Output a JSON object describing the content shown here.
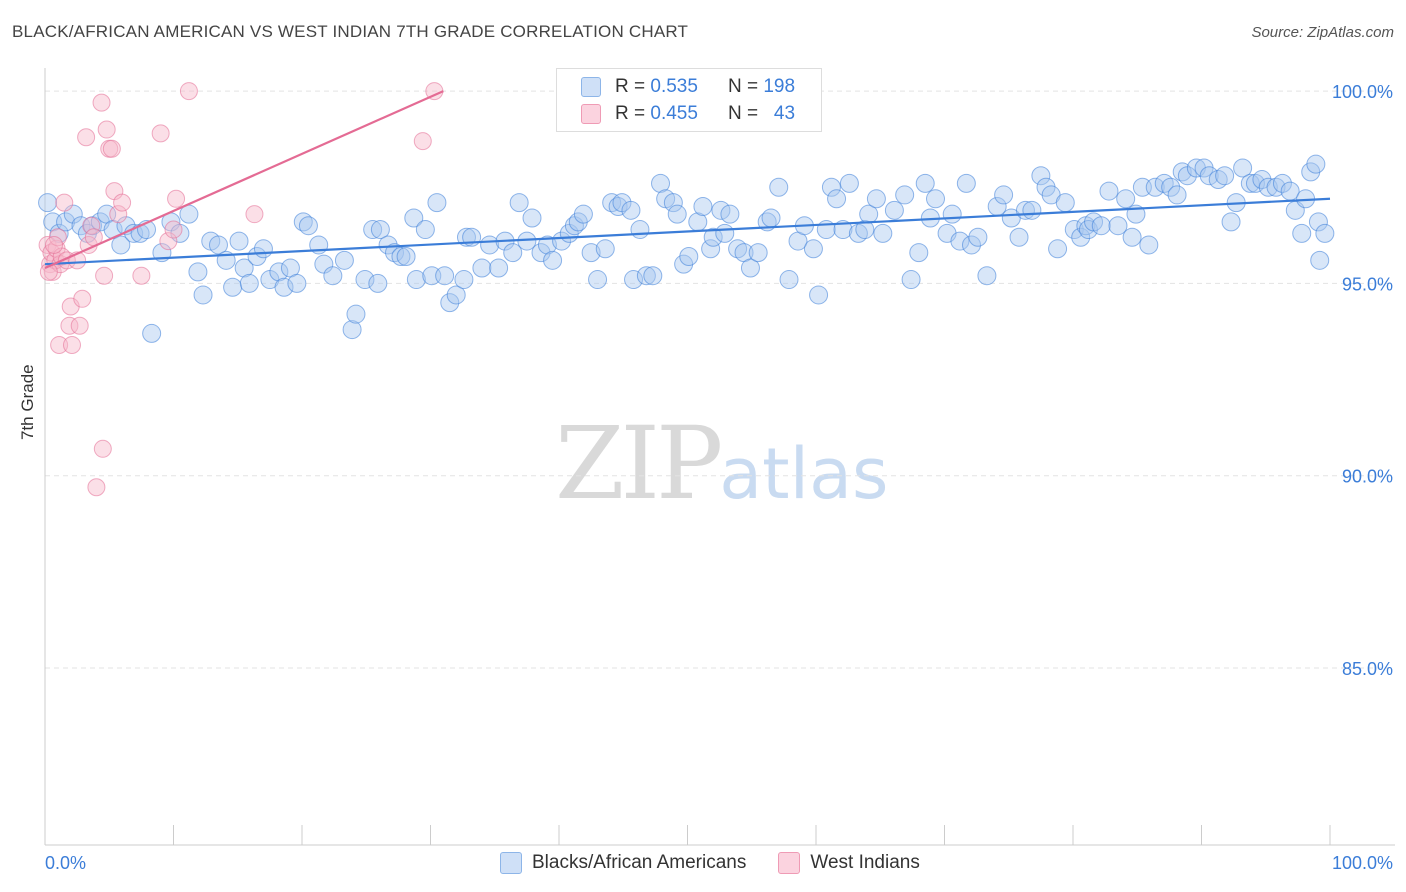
{
  "title": "BLACK/AFRICAN AMERICAN VS WEST INDIAN 7TH GRADE CORRELATION CHART",
  "source": "Source: ZipAtlas.com",
  "watermark": {
    "zip": "ZIP",
    "atlas": "atlas"
  },
  "legend": {
    "rows": [
      {
        "r_label": "R =",
        "r_value": "0.535",
        "n_label": "N =",
        "n_value": "198",
        "color": "#a8c8f0"
      },
      {
        "r_label": "R =",
        "r_value": "0.455",
        "n_label": "N =",
        "n_value": "43",
        "color": "#f6b7c9"
      }
    ]
  },
  "bottom_legend": {
    "series1": "Blacks/African Americans",
    "series2": "West Indians"
  },
  "chart_data": {
    "type": "scatter",
    "ylabel": "7th Grade",
    "xlabel": "",
    "x_tick_labels": [
      "0.0%",
      "100.0%"
    ],
    "y_tick_labels": [
      "100.0%",
      "95.0%",
      "90.0%",
      "85.0%"
    ],
    "y_ticks": [
      100,
      95,
      90,
      85
    ],
    "xlim": [
      0,
      100
    ],
    "ylim": [
      80.4,
      100.6
    ],
    "series": [
      {
        "name": "Blacks/African Americans",
        "color": "#3b7dd8",
        "fill": "#a8c8f0",
        "trend": {
          "x": [
            0,
            100
          ],
          "y": [
            95.5,
            97.2
          ]
        },
        "points": [
          [
            0.2,
            97.1
          ],
          [
            0.6,
            96.6
          ],
          [
            1.1,
            96.3
          ],
          [
            1.6,
            96.6
          ],
          [
            2.2,
            96.8
          ],
          [
            2.8,
            96.5
          ],
          [
            3.3,
            96.3
          ],
          [
            3.7,
            96.5
          ],
          [
            4.3,
            96.6
          ],
          [
            4.8,
            96.8
          ],
          [
            5.3,
            96.4
          ],
          [
            5.9,
            96.0
          ],
          [
            6.3,
            96.5
          ],
          [
            6.9,
            96.3
          ],
          [
            7.4,
            96.3
          ],
          [
            7.9,
            96.4
          ],
          [
            8.3,
            93.7
          ],
          [
            9.1,
            95.8
          ],
          [
            9.8,
            96.6
          ],
          [
            10.5,
            96.3
          ],
          [
            11.2,
            96.8
          ],
          [
            11.9,
            95.3
          ],
          [
            12.3,
            94.7
          ],
          [
            12.9,
            96.1
          ],
          [
            13.5,
            96.0
          ],
          [
            14.1,
            95.6
          ],
          [
            14.6,
            94.9
          ],
          [
            15.1,
            96.1
          ],
          [
            15.5,
            95.4
          ],
          [
            15.9,
            95.0
          ],
          [
            16.5,
            95.7
          ],
          [
            17.0,
            95.9
          ],
          [
            17.5,
            95.1
          ],
          [
            18.2,
            95.3
          ],
          [
            18.6,
            94.9
          ],
          [
            19.1,
            95.4
          ],
          [
            19.6,
            95.0
          ],
          [
            20.1,
            96.6
          ],
          [
            20.5,
            96.5
          ],
          [
            21.3,
            96.0
          ],
          [
            21.7,
            95.5
          ],
          [
            22.4,
            95.2
          ],
          [
            23.3,
            95.6
          ],
          [
            23.9,
            93.8
          ],
          [
            24.2,
            94.2
          ],
          [
            24.9,
            95.1
          ],
          [
            25.5,
            96.4
          ],
          [
            25.9,
            95.0
          ],
          [
            26.1,
            96.4
          ],
          [
            26.7,
            96.0
          ],
          [
            27.2,
            95.8
          ],
          [
            27.7,
            95.7
          ],
          [
            28.1,
            95.7
          ],
          [
            28.7,
            96.7
          ],
          [
            28.9,
            95.1
          ],
          [
            29.6,
            96.4
          ],
          [
            30.1,
            95.2
          ],
          [
            30.5,
            97.1
          ],
          [
            31.1,
            95.2
          ],
          [
            31.5,
            94.5
          ],
          [
            32.0,
            94.7
          ],
          [
            32.6,
            95.1
          ],
          [
            32.8,
            96.2
          ],
          [
            33.2,
            96.2
          ],
          [
            34.0,
            95.4
          ],
          [
            34.6,
            96.0
          ],
          [
            35.3,
            95.4
          ],
          [
            35.8,
            96.1
          ],
          [
            36.4,
            95.8
          ],
          [
            36.9,
            97.1
          ],
          [
            37.5,
            96.1
          ],
          [
            37.9,
            96.7
          ],
          [
            38.6,
            95.8
          ],
          [
            39.1,
            96.0
          ],
          [
            39.5,
            95.6
          ],
          [
            40.2,
            96.1
          ],
          [
            40.8,
            96.3
          ],
          [
            41.2,
            96.5
          ],
          [
            41.5,
            96.6
          ],
          [
            41.9,
            96.8
          ],
          [
            42.5,
            95.8
          ],
          [
            43.0,
            95.1
          ],
          [
            43.6,
            95.9
          ],
          [
            44.1,
            97.1
          ],
          [
            44.6,
            97.0
          ],
          [
            44.9,
            97.1
          ],
          [
            45.6,
            96.9
          ],
          [
            45.8,
            95.1
          ],
          [
            46.3,
            96.4
          ],
          [
            46.8,
            95.2
          ],
          [
            47.3,
            95.2
          ],
          [
            47.9,
            97.6
          ],
          [
            48.3,
            97.2
          ],
          [
            48.9,
            97.1
          ],
          [
            49.2,
            96.8
          ],
          [
            49.7,
            95.5
          ],
          [
            50.1,
            95.7
          ],
          [
            50.8,
            96.6
          ],
          [
            51.2,
            97.0
          ],
          [
            51.8,
            95.9
          ],
          [
            52.0,
            96.2
          ],
          [
            52.6,
            96.9
          ],
          [
            52.9,
            96.3
          ],
          [
            53.3,
            96.8
          ],
          [
            53.9,
            95.9
          ],
          [
            54.4,
            95.8
          ],
          [
            54.9,
            95.4
          ],
          [
            55.5,
            95.8
          ],
          [
            56.2,
            96.6
          ],
          [
            56.5,
            96.7
          ],
          [
            57.1,
            97.5
          ],
          [
            57.9,
            95.1
          ],
          [
            58.6,
            96.1
          ],
          [
            59.1,
            96.5
          ],
          [
            59.8,
            95.9
          ],
          [
            60.2,
            94.7
          ],
          [
            60.8,
            96.4
          ],
          [
            61.2,
            97.5
          ],
          [
            61.6,
            97.2
          ],
          [
            62.1,
            96.4
          ],
          [
            62.6,
            97.6
          ],
          [
            63.3,
            96.3
          ],
          [
            63.8,
            96.4
          ],
          [
            64.1,
            96.8
          ],
          [
            64.7,
            97.2
          ],
          [
            65.2,
            96.3
          ],
          [
            66.1,
            96.9
          ],
          [
            66.9,
            97.3
          ],
          [
            67.4,
            95.1
          ],
          [
            68.0,
            95.8
          ],
          [
            68.5,
            97.6
          ],
          [
            68.9,
            96.7
          ],
          [
            69.3,
            97.2
          ],
          [
            70.2,
            96.3
          ],
          [
            70.6,
            96.8
          ],
          [
            71.2,
            96.1
          ],
          [
            71.7,
            97.6
          ],
          [
            72.1,
            96.0
          ],
          [
            72.6,
            96.2
          ],
          [
            73.3,
            95.2
          ],
          [
            74.1,
            97.0
          ],
          [
            74.6,
            97.3
          ],
          [
            75.2,
            96.7
          ],
          [
            75.8,
            96.2
          ],
          [
            76.3,
            96.9
          ],
          [
            76.8,
            96.9
          ],
          [
            77.5,
            97.8
          ],
          [
            77.9,
            97.5
          ],
          [
            78.3,
            97.3
          ],
          [
            78.8,
            95.9
          ],
          [
            79.4,
            97.1
          ],
          [
            80.1,
            96.4
          ],
          [
            80.6,
            96.2
          ],
          [
            81.0,
            96.5
          ],
          [
            81.2,
            96.4
          ],
          [
            81.6,
            96.6
          ],
          [
            82.2,
            96.5
          ],
          [
            82.8,
            97.4
          ],
          [
            83.5,
            96.5
          ],
          [
            84.1,
            97.2
          ],
          [
            84.6,
            96.2
          ],
          [
            84.9,
            96.8
          ],
          [
            85.4,
            97.5
          ],
          [
            85.9,
            96.0
          ],
          [
            86.4,
            97.5
          ],
          [
            87.1,
            97.6
          ],
          [
            87.6,
            97.5
          ],
          [
            88.1,
            97.3
          ],
          [
            88.5,
            97.9
          ],
          [
            88.9,
            97.8
          ],
          [
            89.6,
            98.0
          ],
          [
            90.2,
            98.0
          ],
          [
            90.6,
            97.8
          ],
          [
            91.3,
            97.7
          ],
          [
            91.8,
            97.8
          ],
          [
            92.3,
            96.6
          ],
          [
            92.7,
            97.1
          ],
          [
            93.2,
            98.0
          ],
          [
            93.8,
            97.6
          ],
          [
            94.2,
            97.6
          ],
          [
            94.7,
            97.7
          ],
          [
            95.2,
            97.5
          ],
          [
            95.8,
            97.5
          ],
          [
            96.3,
            97.6
          ],
          [
            96.9,
            97.4
          ],
          [
            97.3,
            96.9
          ],
          [
            97.8,
            96.3
          ],
          [
            98.1,
            97.2
          ],
          [
            98.5,
            97.9
          ],
          [
            99.1,
            96.6
          ],
          [
            99.6,
            96.3
          ],
          [
            98.9,
            98.1
          ],
          [
            99.2,
            95.6
          ]
        ]
      },
      {
        "name": "West Indians",
        "color": "#e46b94",
        "fill": "#f6b7c9",
        "trend": {
          "x": [
            0,
            31
          ],
          "y": [
            95.4,
            100.0
          ]
        },
        "points": [
          [
            0.2,
            96.0
          ],
          [
            0.4,
            95.5
          ],
          [
            0.5,
            95.8
          ],
          [
            0.6,
            95.3
          ],
          [
            0.8,
            95.6
          ],
          [
            0.9,
            95.9
          ],
          [
            1.0,
            96.2
          ],
          [
            1.1,
            93.4
          ],
          [
            1.2,
            95.5
          ],
          [
            1.3,
            95.7
          ],
          [
            1.5,
            97.1
          ],
          [
            1.7,
            95.6
          ],
          [
            1.9,
            93.9
          ],
          [
            2.0,
            94.4
          ],
          [
            2.1,
            93.4
          ],
          [
            2.5,
            95.6
          ],
          [
            2.7,
            93.9
          ],
          [
            2.9,
            94.6
          ],
          [
            3.2,
            98.8
          ],
          [
            3.4,
            96.0
          ],
          [
            3.6,
            96.5
          ],
          [
            3.8,
            96.2
          ],
          [
            4.0,
            89.7
          ],
          [
            4.4,
            99.7
          ],
          [
            4.5,
            90.7
          ],
          [
            4.6,
            95.2
          ],
          [
            4.8,
            99.0
          ],
          [
            5.0,
            98.5
          ],
          [
            5.2,
            98.5
          ],
          [
            5.4,
            97.4
          ],
          [
            5.7,
            96.8
          ],
          [
            6.0,
            97.1
          ],
          [
            7.5,
            95.2
          ],
          [
            9.0,
            98.9
          ],
          [
            9.6,
            96.1
          ],
          [
            10.0,
            96.4
          ],
          [
            10.2,
            97.2
          ],
          [
            11.2,
            100.0
          ],
          [
            16.3,
            96.8
          ],
          [
            29.4,
            98.7
          ],
          [
            30.3,
            100.0
          ],
          [
            0.3,
            95.3
          ],
          [
            0.7,
            96.0
          ]
        ]
      }
    ]
  }
}
